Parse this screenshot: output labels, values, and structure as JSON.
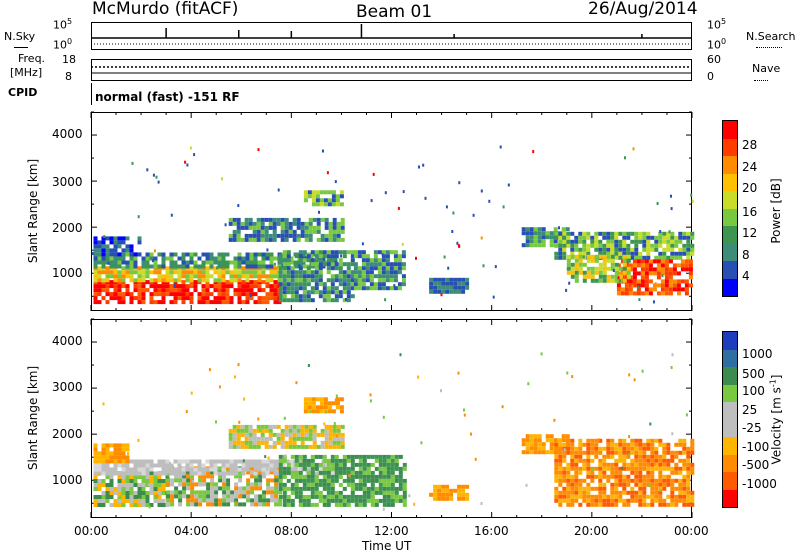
{
  "header": {
    "station": "McMurdo (fitACF)",
    "beam": "Beam 01",
    "date": "26/Aug/2014"
  },
  "top_panels": {
    "nsky_label": "N.Sky",
    "nsky_ticks": [
      "10^5",
      "10^0"
    ],
    "nsearch_label": "N.Search",
    "nsearch_ticks": [
      "10^5",
      "10^0"
    ],
    "freq_label": "Freq.",
    "freq_unit": "[MHz]",
    "freq_ticks": [
      "18",
      "8"
    ],
    "nave_label": "Nave",
    "nave_ticks": [
      "60",
      "0"
    ],
    "cpid_label": "CPID",
    "cpid_text": "normal (fast) -151 RF"
  },
  "chart_data": [
    {
      "type": "heatmap",
      "name": "power",
      "ylabel": "Slant Range [km]",
      "ylim": [
        180,
        4500
      ],
      "yticks": [
        "4000",
        "3000",
        "2000",
        "1000"
      ],
      "xlim_hours": [
        0,
        24
      ],
      "xticks": [
        "00:00",
        "04:00",
        "08:00",
        "12:00",
        "16:00",
        "20:00",
        "00:00"
      ],
      "colorbar_label": "Power [dB]",
      "colorbar_ticks": [
        "28",
        "24",
        "20",
        "16",
        "12",
        "8",
        "4"
      ],
      "colorbar_colors": [
        "#ff0000",
        "#ff3c00",
        "#ff8c00",
        "#ffc000",
        "#c8dc28",
        "#78c840",
        "#3c9650",
        "#3c8c78",
        "#2850b4",
        "#0000ff"
      ]
    },
    {
      "type": "heatmap",
      "name": "velocity",
      "ylabel": "Slant Range [km]",
      "ylim": [
        180,
        4500
      ],
      "yticks": [
        "4000",
        "3000",
        "2000",
        "1000"
      ],
      "xlim_hours": [
        0,
        24
      ],
      "xticks": [
        "00:00",
        "04:00",
        "08:00",
        "12:00",
        "16:00",
        "20:00",
        "00:00"
      ],
      "xlabel": "Time UT",
      "colorbar_label": "Velocity [m s^-1]",
      "colorbar_ticks": [
        "1000",
        "500",
        "100",
        "25",
        "-25",
        "-100",
        "-500",
        "-1000"
      ],
      "colorbar_colors": [
        "#1e3cbe",
        "#2e6ea0",
        "#3c8c50",
        "#78c840",
        "#bebebe",
        "#bebebe",
        "#ffb400",
        "#ff8c00",
        "#ff5a00",
        "#ff0000"
      ]
    }
  ]
}
